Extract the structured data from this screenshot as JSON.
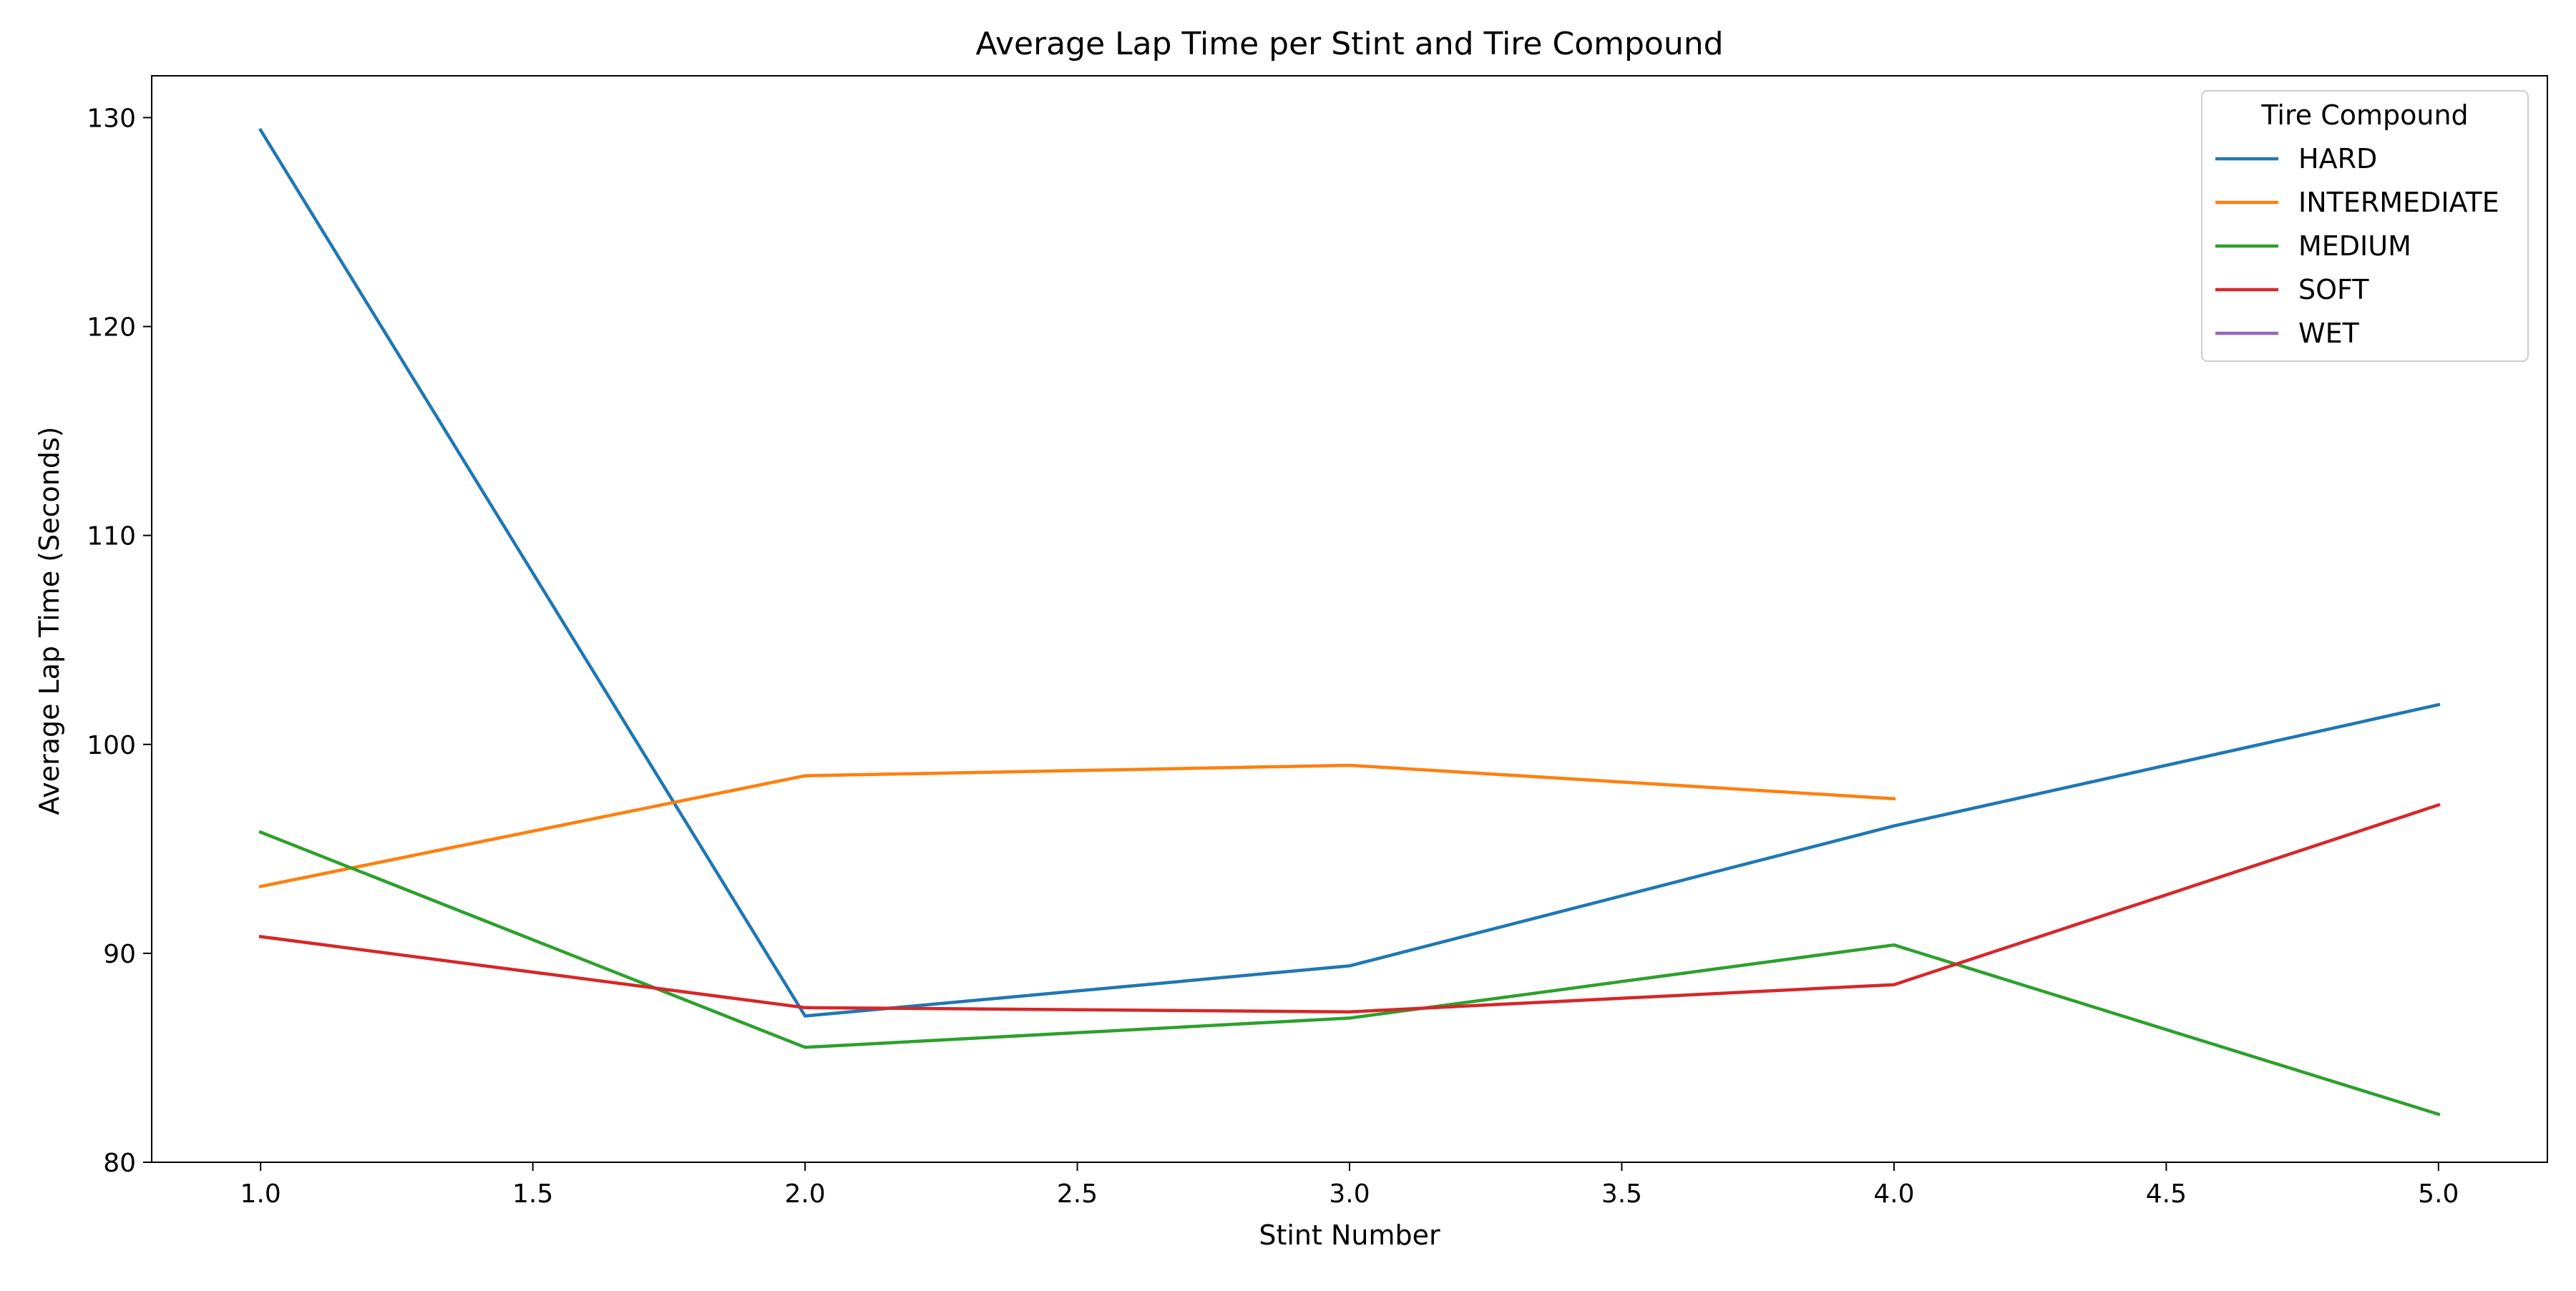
{
  "chart_data": {
    "type": "line",
    "title": "Average Lap Time per Stint and Tire Compound",
    "xlabel": "Stint Number",
    "ylabel": "Average Lap Time (Seconds)",
    "xlim": [
      0.8,
      5.2
    ],
    "ylim": [
      80,
      132
    ],
    "xticks": [
      1.0,
      1.5,
      2.0,
      2.5,
      3.0,
      3.5,
      4.0,
      4.5,
      5.0
    ],
    "xtick_labels": [
      "1.0",
      "1.5",
      "2.0",
      "2.5",
      "3.0",
      "3.5",
      "4.0",
      "4.5",
      "5.0"
    ],
    "yticks": [
      80,
      90,
      100,
      110,
      120,
      130
    ],
    "ytick_labels": [
      "80",
      "90",
      "100",
      "110",
      "120",
      "130"
    ],
    "grid": false,
    "legend": {
      "title": "Tire Compound",
      "placement": "top-right"
    },
    "series": [
      {
        "name": "HARD",
        "color": "#1f77b4",
        "x": [
          1,
          2,
          3,
          4,
          5
        ],
        "y": [
          129.4,
          87.0,
          89.4,
          96.1,
          101.9
        ]
      },
      {
        "name": "INTERMEDIATE",
        "color": "#ff7f0e",
        "x": [
          1,
          2,
          3,
          4
        ],
        "y": [
          93.2,
          98.5,
          99.0,
          97.4
        ]
      },
      {
        "name": "MEDIUM",
        "color": "#2ca02c",
        "x": [
          1,
          2,
          3,
          4,
          5
        ],
        "y": [
          95.8,
          85.5,
          86.9,
          90.4,
          82.3
        ]
      },
      {
        "name": "SOFT",
        "color": "#d62728",
        "x": [
          1,
          2,
          3,
          4,
          5
        ],
        "y": [
          90.8,
          87.4,
          87.2,
          88.5,
          97.1
        ]
      },
      {
        "name": "WET",
        "color": "#9467bd",
        "x": [],
        "y": []
      }
    ]
  }
}
